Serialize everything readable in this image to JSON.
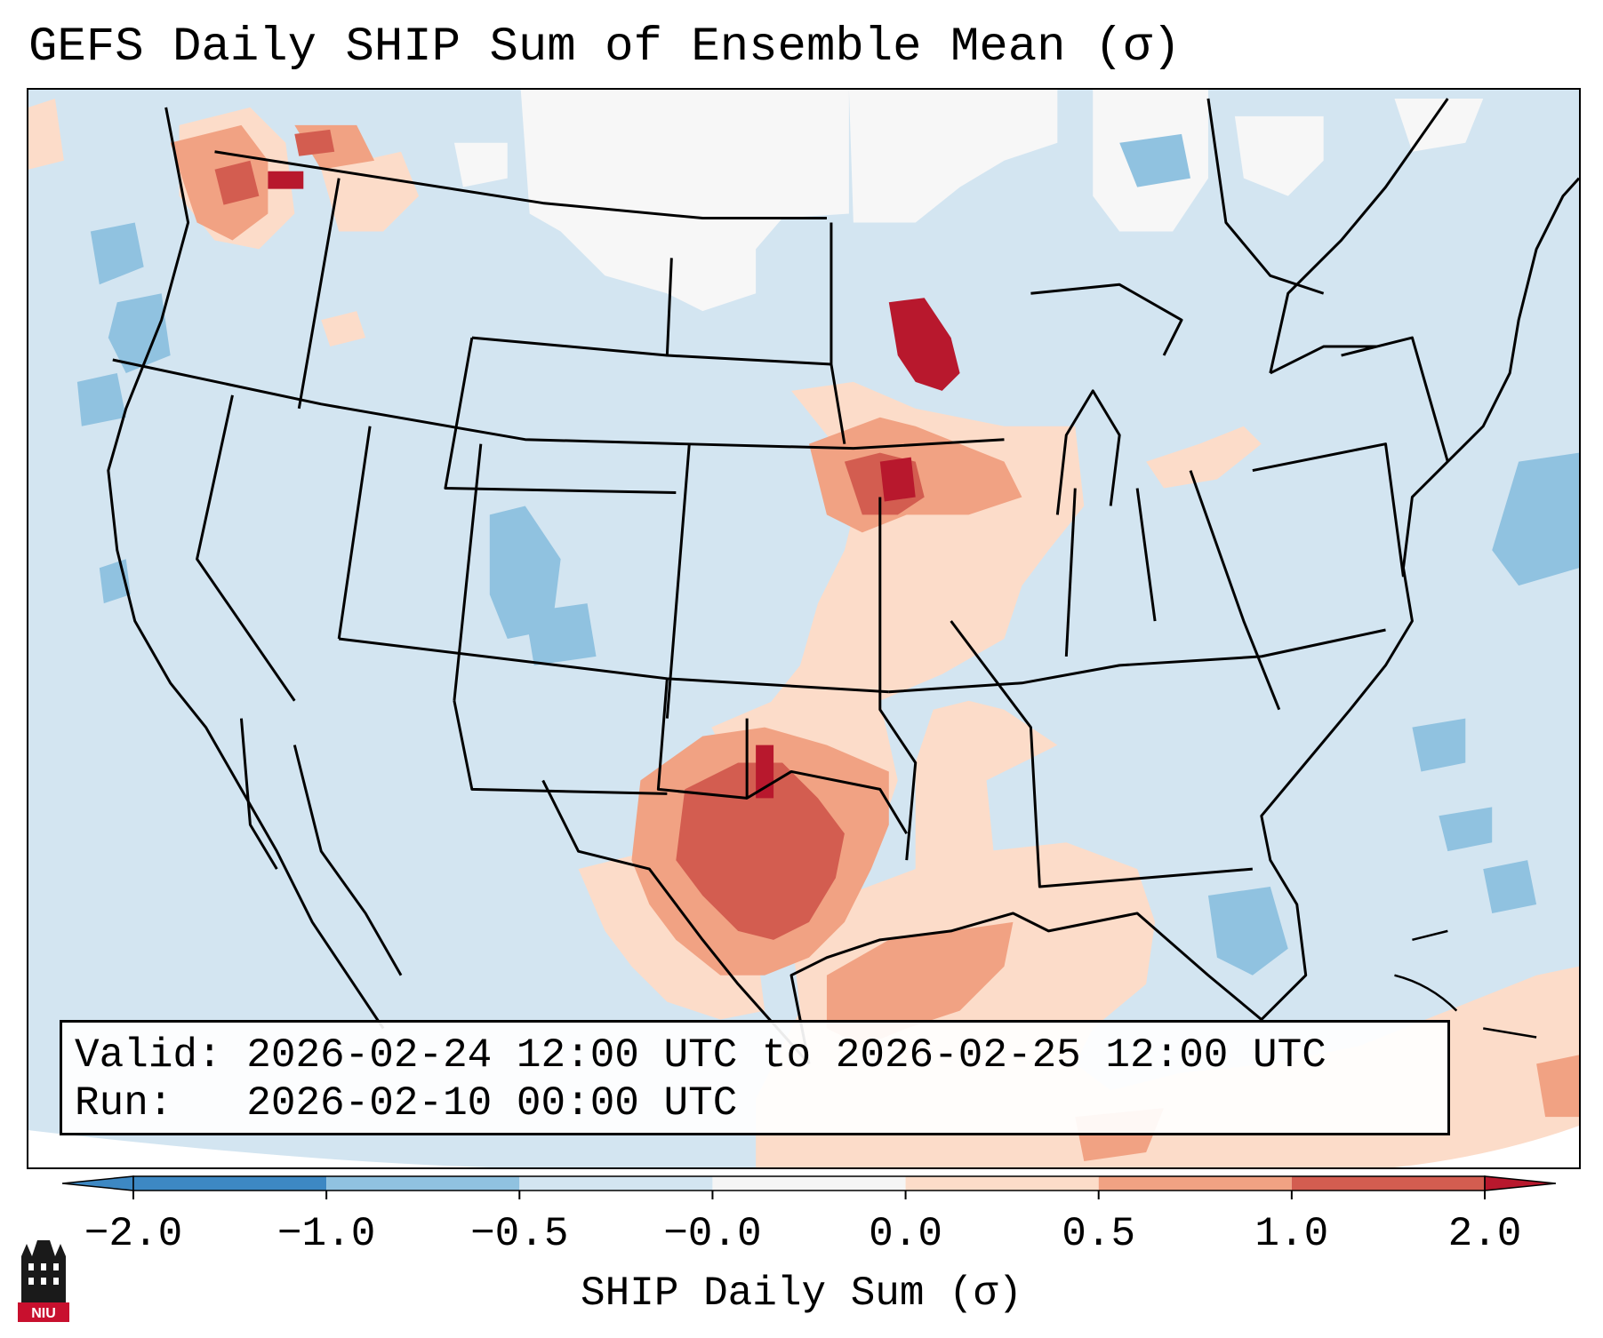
{
  "title": "GEFS Daily SHIP Sum of Ensemble Mean (σ)",
  "info": {
    "valid_line": "Valid: 2026-02-24 12:00 UTC to 2026-02-25 12:00 UTC",
    "run_line": "Run:   2026-02-10 00:00 UTC"
  },
  "colorbar": {
    "label": "SHIP Daily Sum (σ)",
    "ticks": [
      "−2.0",
      "−1.0",
      "−0.5",
      "−0.0",
      "0.0",
      "0.5",
      "1.0",
      "2.0"
    ],
    "colors": [
      "#3d88c3",
      "#90c2e0",
      "#d3e5f1",
      "#f5f5f5",
      "#fcdcc9",
      "#f1a283",
      "#d35d50",
      "#b8182d"
    ]
  },
  "logo": {
    "text": "NIU"
  }
}
